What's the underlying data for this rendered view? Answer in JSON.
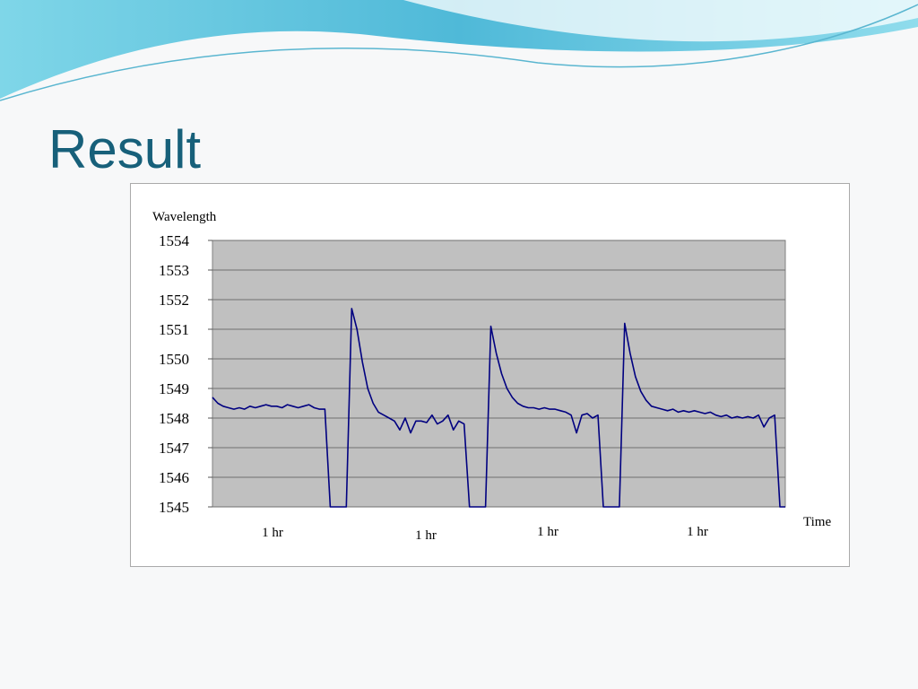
{
  "title": "Result",
  "chart_data": {
    "type": "line",
    "ylabel": "Wavelength",
    "xlabel": "Time",
    "annotations": [
      "1 hr",
      "1 hr",
      "1 hr",
      "1 hr"
    ],
    "categories": [
      null,
      null,
      null,
      null,
      null,
      null,
      null,
      null,
      null,
      null,
      null,
      null,
      null,
      null,
      null,
      null,
      null,
      null,
      null,
      null,
      null,
      null,
      null,
      null,
      null,
      null,
      null,
      null,
      null,
      null,
      null,
      null,
      null,
      null,
      null,
      null,
      null,
      null,
      null,
      null,
      null,
      null,
      null,
      null,
      null,
      null,
      null,
      null,
      null,
      null,
      null,
      null,
      null,
      null,
      null,
      null,
      null,
      null,
      null,
      null,
      null,
      null,
      null,
      null,
      null,
      null,
      null,
      null,
      null,
      null,
      null,
      null,
      null,
      null,
      null,
      null,
      null,
      null,
      null,
      null,
      null,
      null,
      null,
      null,
      null,
      null,
      null,
      null,
      null,
      null,
      null,
      null,
      null,
      null,
      null,
      null,
      null,
      null,
      null,
      null,
      null,
      null,
      null,
      null,
      null,
      null,
      null,
      null
    ],
    "values": [
      1548.7,
      1548.5,
      1548.4,
      1548.35,
      1548.3,
      1548.35,
      1548.3,
      1548.4,
      1548.35,
      1548.4,
      1548.45,
      1548.4,
      1548.4,
      1548.35,
      1548.45,
      1548.4,
      1548.35,
      1548.4,
      1548.45,
      1548.35,
      1548.3,
      1548.3,
      1545,
      1545,
      1545,
      1545,
      1551.7,
      1551.0,
      1549.9,
      1549.0,
      1548.5,
      1548.2,
      1548.1,
      1548.0,
      1547.9,
      1547.6,
      1548.0,
      1547.5,
      1547.9,
      1547.9,
      1547.85,
      1548.1,
      1547.8,
      1547.9,
      1548.1,
      1547.6,
      1547.9,
      1547.8,
      1545,
      1545,
      1545,
      1545,
      1551.1,
      1550.2,
      1549.5,
      1549.0,
      1548.7,
      1548.5,
      1548.4,
      1548.35,
      1548.35,
      1548.3,
      1548.35,
      1548.3,
      1548.3,
      1548.25,
      1548.2,
      1548.1,
      1547.5,
      1548.1,
      1548.15,
      1548.0,
      1548.1,
      1545,
      1545,
      1545,
      1545,
      1551.2,
      1550.2,
      1549.4,
      1548.9,
      1548.6,
      1548.4,
      1548.35,
      1548.3,
      1548.25,
      1548.3,
      1548.2,
      1548.25,
      1548.2,
      1548.25,
      1548.2,
      1548.15,
      1548.2,
      1548.1,
      1548.05,
      1548.1,
      1548.0,
      1548.05,
      1548.0,
      1548.05,
      1548.0,
      1548.1,
      1547.7,
      1548.0,
      1548.1,
      1545,
      1545
    ],
    "color": "#000080",
    "ylim": [
      1545,
      1554
    ],
    "yticks": [
      1545,
      1546,
      1547,
      1548,
      1549,
      1550,
      1551,
      1552,
      1553,
      1554
    ],
    "grid": true
  }
}
